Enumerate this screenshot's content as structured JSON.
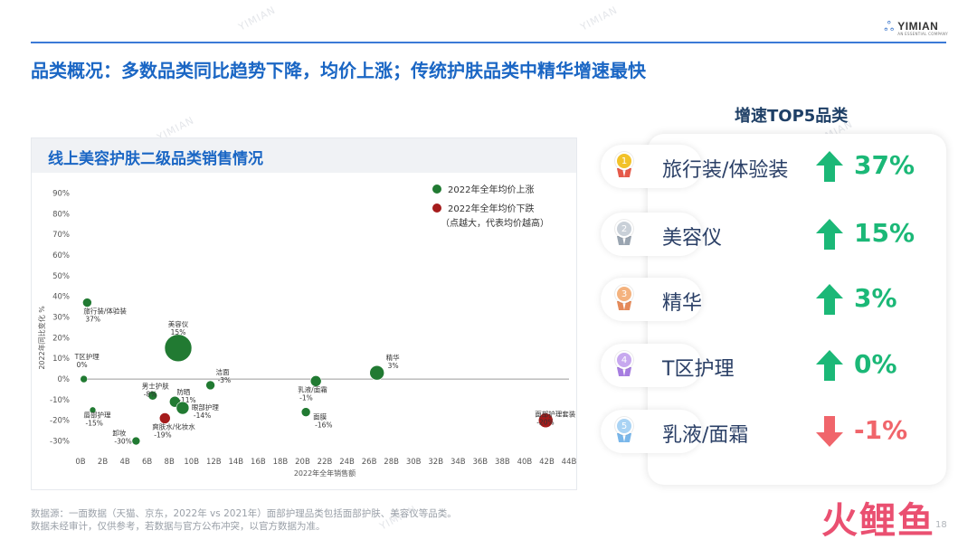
{
  "logo": {
    "name": "YIMIAN",
    "sub": "AN ESSENTIAL COMPANY"
  },
  "headline": "品类概况：多数品类同比趋势下降，均价上涨；传统护肤品类中精华增速最快",
  "watermark": "YIMIAN",
  "chart_data": {
    "type": "scatter",
    "title": "线上美容护肤二级品类销售情况",
    "xlabel": "2022年全年销售额",
    "ylabel": "2022年同比变化 %",
    "x_ticks": [
      "0B",
      "2B",
      "4B",
      "6B",
      "8B",
      "10B",
      "12B",
      "14B",
      "16B",
      "18B",
      "20B",
      "22B",
      "24B",
      "26B",
      "28B",
      "30B",
      "32B",
      "34B",
      "36B",
      "38B",
      "40B",
      "42B",
      "44B"
    ],
    "y_ticks": [
      "90%",
      "80%",
      "70%",
      "60%",
      "50%",
      "40%",
      "30%",
      "20%",
      "10%",
      "0%",
      "-10%",
      "-20%",
      "-30%"
    ],
    "xlim": [
      0,
      44
    ],
    "ylim": [
      -35,
      92
    ],
    "grid": false,
    "legend": {
      "position": "top-right",
      "items": [
        {
          "label": "2022年全年均价上涨",
          "color": "#217a32"
        },
        {
          "label": "2022年全年均价下跌",
          "color": "#a51c1c"
        }
      ],
      "note": "（点越大，代表均价越高）"
    },
    "points": [
      {
        "name": "旅行装/体验装",
        "value_label": "37%",
        "x": 0.6,
        "y": 37,
        "size": 5,
        "trend": "up"
      },
      {
        "name": "美容仪",
        "value_label": "15%",
        "x": 8.8,
        "y": 15,
        "size": 15,
        "trend": "up"
      },
      {
        "name": "T区护理",
        "value_label": "0%",
        "x": 0.3,
        "y": 0,
        "size": 4,
        "trend": "up"
      },
      {
        "name": "精华",
        "value_label": "3%",
        "x": 26.7,
        "y": 3,
        "size": 8,
        "trend": "up"
      },
      {
        "name": "洁面",
        "value_label": "-3%",
        "x": 11.7,
        "y": -3,
        "size": 5,
        "trend": "up"
      },
      {
        "name": "乳液/面霜",
        "value_label": "-1%",
        "x": 21.2,
        "y": -1,
        "size": 6,
        "trend": "up"
      },
      {
        "name": "男士护肤",
        "value_label": "-8%",
        "x": 6.5,
        "y": -8,
        "size": 5,
        "trend": "up"
      },
      {
        "name": "防晒",
        "value_label": "-11%",
        "x": 8.5,
        "y": -11,
        "size": 6,
        "trend": "up"
      },
      {
        "name": "眼部护理",
        "value_label": "-14%",
        "x": 9.2,
        "y": -14,
        "size": 7,
        "trend": "up"
      },
      {
        "name": "唇部护理",
        "value_label": "-15%",
        "x": 1.1,
        "y": -15,
        "size": 3.5,
        "trend": "up"
      },
      {
        "name": "面膜",
        "value_label": "-16%",
        "x": 20.3,
        "y": -16,
        "size": 5,
        "trend": "up"
      },
      {
        "name": "爽肤水/化妆水",
        "value_label": "-19%",
        "x": 7.6,
        "y": -19,
        "size": 6,
        "trend": "down"
      },
      {
        "name": "卸妆",
        "value_label": "-30%",
        "x": 5.0,
        "y": -30,
        "size": 4.5,
        "trend": "up"
      },
      {
        "name": "面部护理套装",
        "value_label": "-20%",
        "x": 41.9,
        "y": -20,
        "size": 8,
        "trend": "down"
      }
    ]
  },
  "top5": {
    "title": "增速TOP5品类",
    "items": [
      {
        "rank": "1",
        "label": "旅行装/体验装",
        "value": "37%",
        "direction": "up",
        "medal_color": "#f2c229",
        "ribbon_color": "#e55a4a"
      },
      {
        "rank": "2",
        "label": "美容仪",
        "value": "15%",
        "direction": "up",
        "medal_color": "#c9d0d8",
        "ribbon_color": "#9aa5b1"
      },
      {
        "rank": "3",
        "label": "精华",
        "value": "3%",
        "direction": "up",
        "medal_color": "#f4b27e",
        "ribbon_color": "#e58a5a"
      },
      {
        "rank": "4",
        "label": "T区护理",
        "value": "0%",
        "direction": "up",
        "medal_color": "#c7a8ef",
        "ribbon_color": "#a67de0"
      },
      {
        "rank": "5",
        "label": "乳液/面霜",
        "value": "-1%",
        "direction": "down",
        "medal_color": "#a9d3f4",
        "ribbon_color": "#7ab7ea"
      }
    ],
    "up_color": "#1bb877",
    "down_color": "#f0656b"
  },
  "source": {
    "line1": "数据源：一面数据（天猫、京东，2022年 vs 2021年）面部护理品类包括面部护肤、美容仪等品类。",
    "line2": "数据未经审计，仅供参考，若数据与官方公布冲突，以官方数据为准。"
  },
  "source_brand": "火鲤鱼",
  "page_number": "18"
}
